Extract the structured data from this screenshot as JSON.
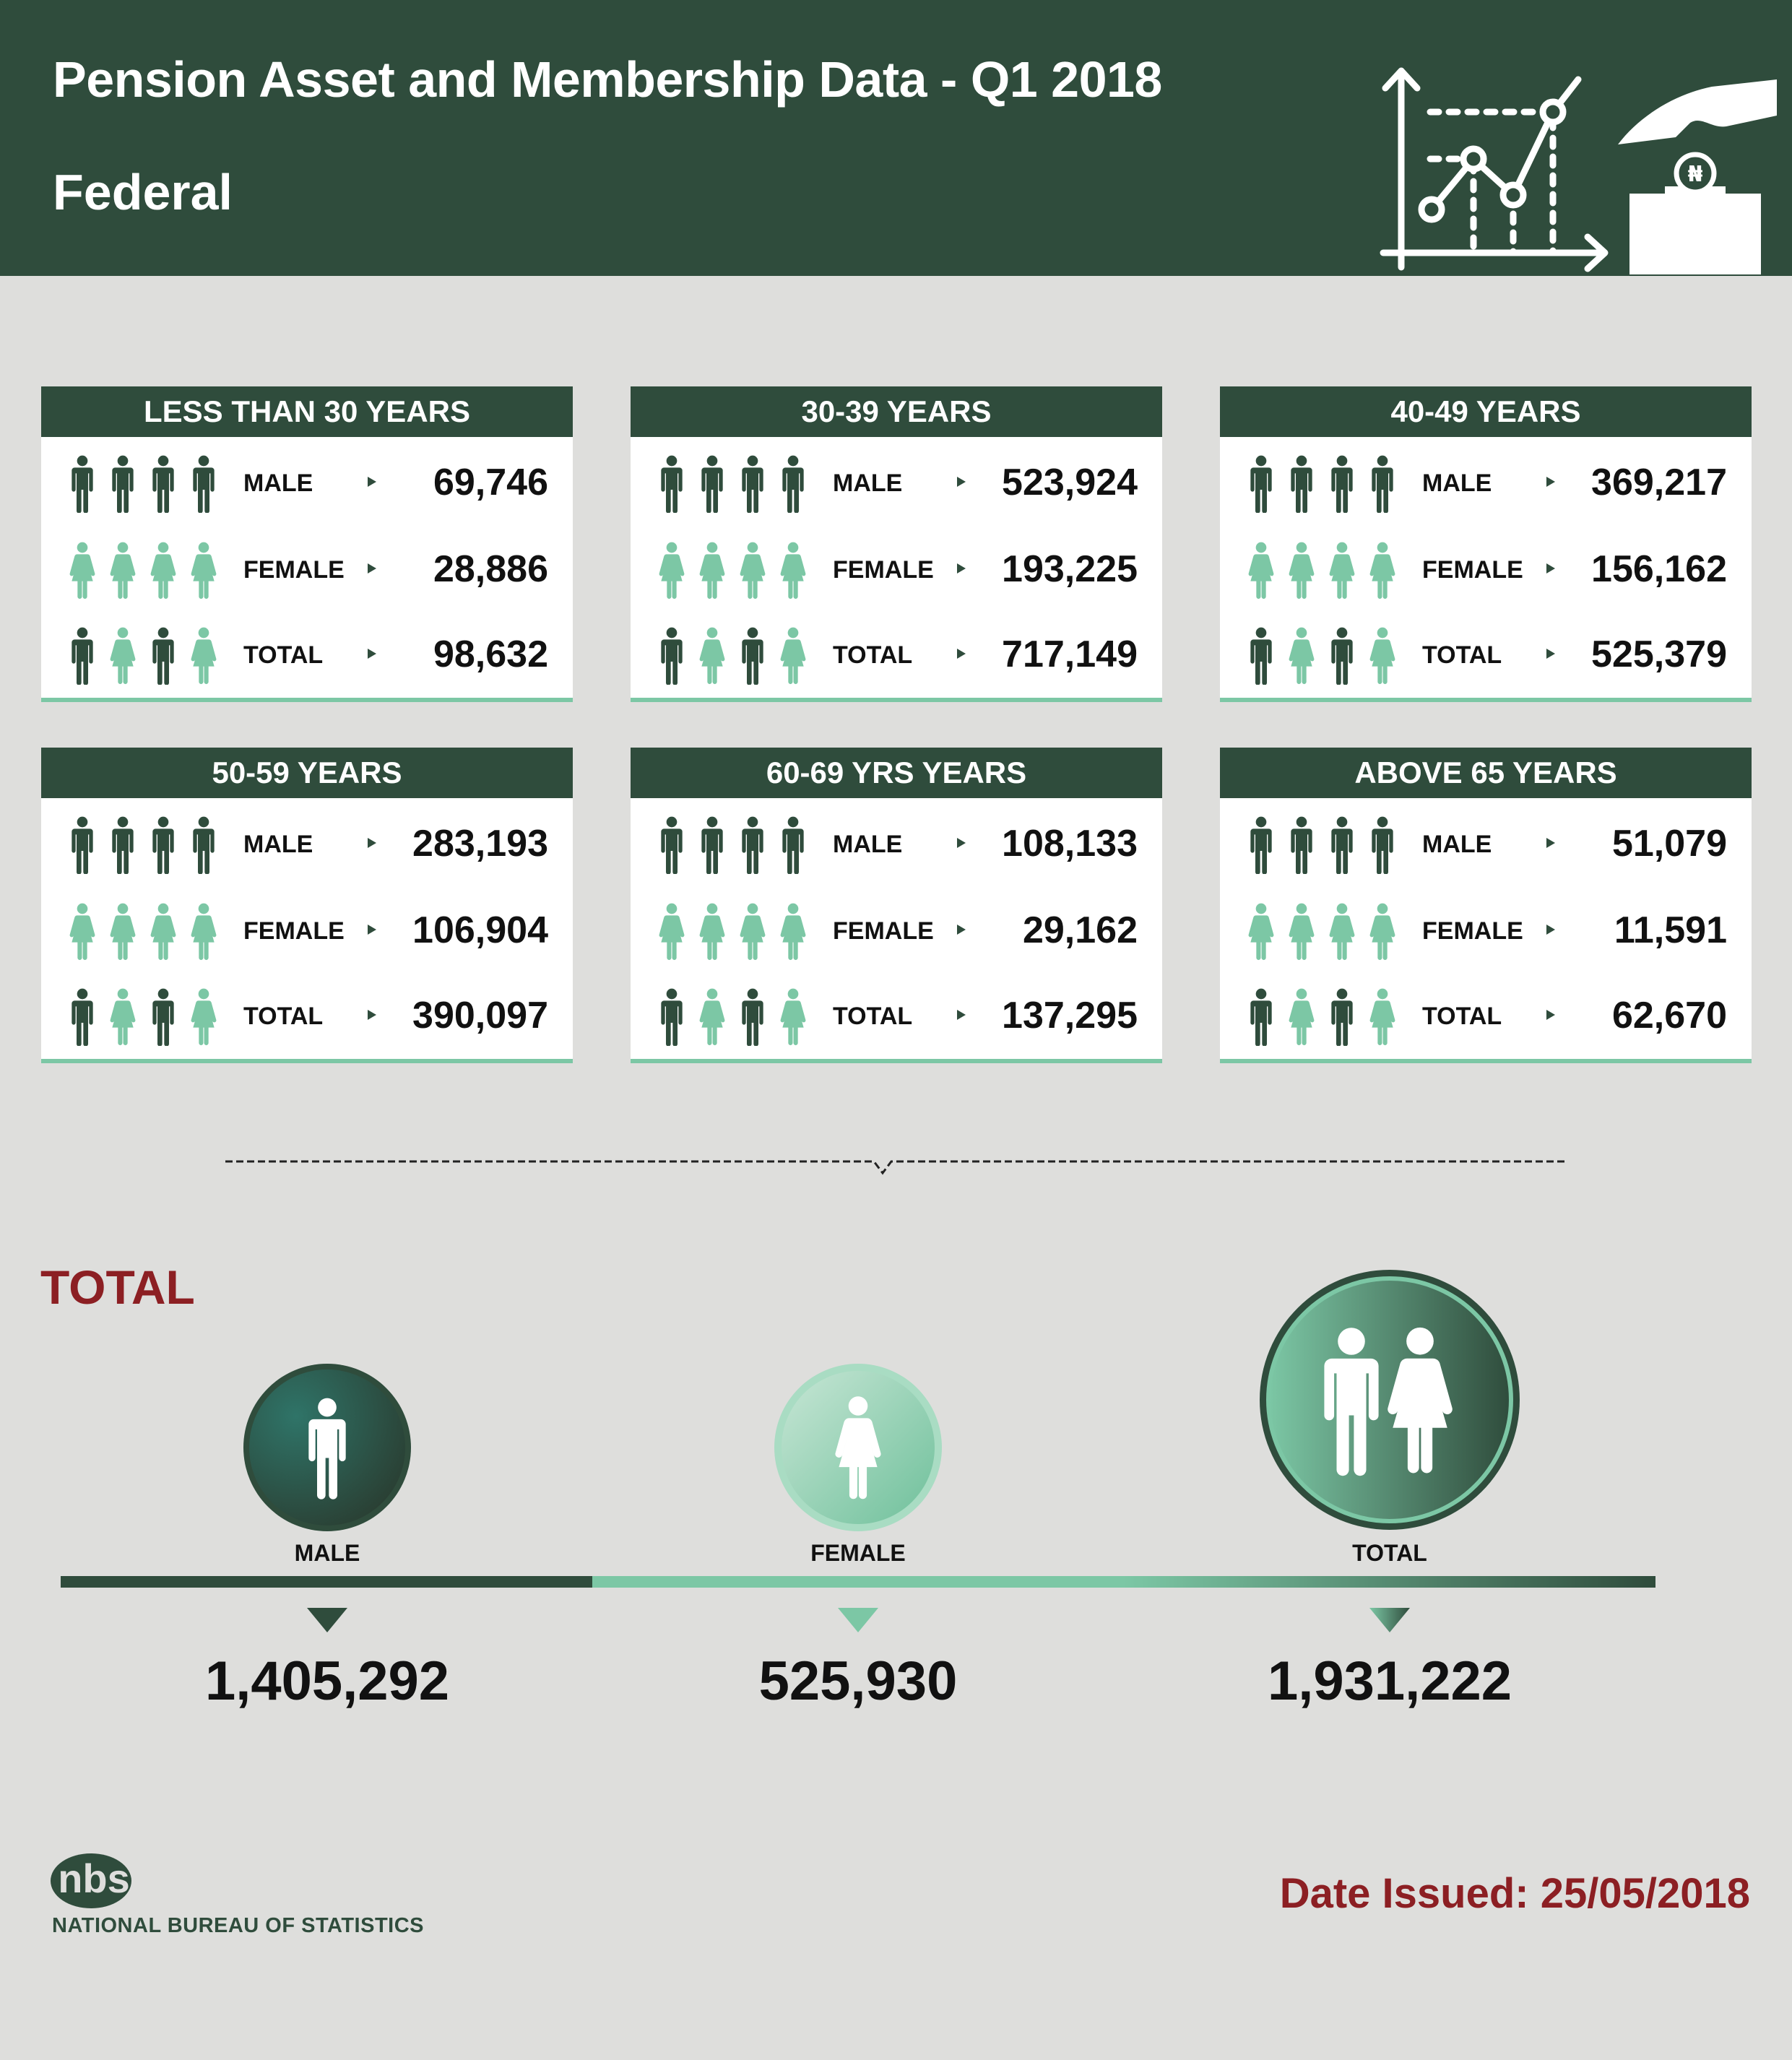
{
  "header": {
    "title": "Pension Asset and Membership Data - Q1 2018",
    "subtitle": "Federal",
    "icons": [
      "growth-chart-icon",
      "hand-coin-box-icon"
    ],
    "coin_symbol": "₦"
  },
  "labels": {
    "male": "MALE",
    "female": "FEMALE",
    "total": "TOTAL"
  },
  "age_groups": [
    {
      "title": "LESS THAN 30 YEARS",
      "male": "69,746",
      "female": "28,886",
      "total": "98,632"
    },
    {
      "title": "30-39 YEARS",
      "male": "523,924",
      "female": "193,225",
      "total": "717,149"
    },
    {
      "title": "40-49 YEARS",
      "male": "369,217",
      "female": "156,162",
      "total": "525,379"
    },
    {
      "title": "50-59 YEARS",
      "male": "283,193",
      "female": "106,904",
      "total": "390,097"
    },
    {
      "title": "60-69 YRS YEARS",
      "male": "108,133",
      "female": "29,162",
      "total": "137,295"
    },
    {
      "title": "ABOVE 65 YEARS",
      "male": "51,079",
      "female": "11,591",
      "total": "62,670"
    }
  ],
  "totals": {
    "heading": "TOTAL",
    "male_label": "MALE",
    "female_label": "FEMALE",
    "total_label": "TOTAL",
    "male": "1,405,292",
    "female": "525,930",
    "total": "1,931,222"
  },
  "footer": {
    "logo_text": "nbs",
    "org_name": "NATIONAL BUREAU OF STATISTICS",
    "date_issued": "Date Issued: 25/05/2018"
  },
  "colors": {
    "dark_green": "#2f4c3c",
    "light_green": "#7cc7a5",
    "accent_red": "#8c1f23",
    "background": "#dededc"
  }
}
